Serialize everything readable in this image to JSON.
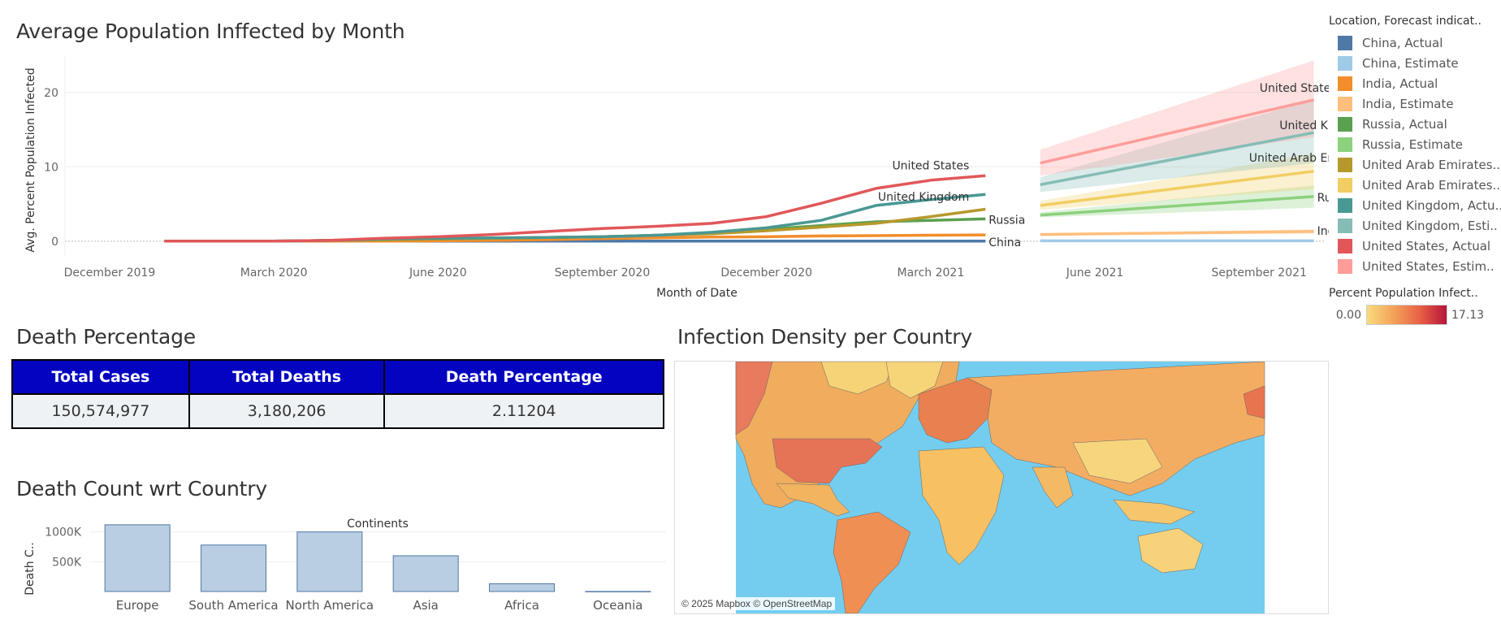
{
  "line_chart": {
    "title": "Average Population Inffected by Month",
    "ylabel": "Avg. Percent Population Infected",
    "xlabel": "Month of Date"
  },
  "legend": {
    "title": "Location, Forecast indicat..",
    "items": [
      {
        "label": "China, Actual",
        "color": "#4e79a7"
      },
      {
        "label": "China, Estimate",
        "color": "#a0cbe8"
      },
      {
        "label": "India, Actual",
        "color": "#f28e2b"
      },
      {
        "label": "India, Estimate",
        "color": "#ffbe7d"
      },
      {
        "label": "Russia, Actual",
        "color": "#59a14f"
      },
      {
        "label": "Russia, Estimate",
        "color": "#8cd17d"
      },
      {
        "label": "United Arab Emirates..",
        "color": "#b6992d"
      },
      {
        "label": "United Arab Emirates..",
        "color": "#f1ce63"
      },
      {
        "label": "United Kingdom, Actu..",
        "color": "#499894"
      },
      {
        "label": "United Kingdom, Esti..",
        "color": "#86bcb6"
      },
      {
        "label": "United States, Actual",
        "color": "#e15759"
      },
      {
        "label": "United States, Estim..",
        "color": "#ff9d9a"
      }
    ],
    "gradient_title": "Percent Population Infect..",
    "gradient_min": "0.00",
    "gradient_max": "17.13",
    "gradient_colors": [
      "#f8dc7e",
      "#f3a25a",
      "#e86044",
      "#b7143c"
    ]
  },
  "death_table": {
    "title": "Death Percentage",
    "headers": [
      "Total Cases",
      "Total Deaths",
      "Death Percentage"
    ],
    "values": [
      "150,574,977",
      "3,180,206",
      "2.11204"
    ]
  },
  "bar_section": {
    "title": "Death Count wrt Country",
    "subtitle": "Continents",
    "ylabel": "Death C.."
  },
  "map_section": {
    "title": "Infection Density per Country",
    "attribution": "© 2025 Mapbox © OpenStreetMap"
  },
  "chart_data": [
    {
      "type": "line",
      "title": "Average Population Inffected by Month",
      "xlabel": "Month of Date",
      "ylabel": "Avg. Percent Population Infected",
      "x_ticks": [
        "December 2019",
        "March 2020",
        "June 2020",
        "September 2020",
        "December 2020",
        "March 2021",
        "June 2021",
        "September 2021"
      ],
      "y_ticks": [
        "0",
        "10",
        "20"
      ],
      "ylim": [
        -1,
        25
      ],
      "actual_months": [
        "2020-01",
        "2020-02",
        "2020-03",
        "2020-04",
        "2020-05",
        "2020-06",
        "2020-07",
        "2020-08",
        "2020-09",
        "2020-10",
        "2020-11",
        "2020-12",
        "2021-01",
        "2021-02",
        "2021-03",
        "2021-04"
      ],
      "estimate_months": [
        "2021-05",
        "2021-10"
      ],
      "series": [
        {
          "name": "China, Actual",
          "color": "#4e79a7",
          "values": [
            0,
            0,
            0,
            0,
            0,
            0,
            0,
            0,
            0,
            0,
            0,
            0,
            0,
            0,
            0,
            0
          ]
        },
        {
          "name": "India, Actual",
          "color": "#f28e2b",
          "values": [
            0,
            0,
            0,
            0,
            0,
            0.05,
            0.1,
            0.2,
            0.35,
            0.45,
            0.55,
            0.6,
            0.7,
            0.75,
            0.8,
            0.85
          ]
        },
        {
          "name": "Russia, Actual",
          "color": "#59a14f",
          "values": [
            0,
            0,
            0,
            0.1,
            0.2,
            0.3,
            0.4,
            0.5,
            0.6,
            0.8,
            1.1,
            1.6,
            2.1,
            2.6,
            2.8,
            3.0
          ]
        },
        {
          "name": "United Arab Emirates, Actual",
          "color": "#b6992d",
          "values": [
            0,
            0,
            0,
            0.1,
            0.2,
            0.3,
            0.4,
            0.5,
            0.6,
            0.8,
            1.0,
            1.4,
            1.9,
            2.4,
            3.3,
            4.3
          ]
        },
        {
          "name": "United Kingdom, Actual",
          "color": "#499894",
          "values": [
            0,
            0,
            0,
            0.1,
            0.3,
            0.4,
            0.45,
            0.5,
            0.6,
            0.8,
            1.2,
            1.8,
            2.8,
            4.8,
            5.6,
            6.3
          ]
        },
        {
          "name": "United States, Actual",
          "color": "#e15759",
          "values": [
            0,
            0,
            0,
            0.1,
            0.4,
            0.6,
            0.9,
            1.3,
            1.7,
            2.0,
            2.4,
            3.3,
            5.1,
            7.1,
            8.2,
            8.8
          ]
        },
        {
          "name": "China, Estimate",
          "color": "#a0cbe8",
          "estimate": true,
          "values": [
            0.05,
            0.05
          ],
          "band": [
            [
              0,
              0.1
            ],
            [
              0,
              0.1
            ]
          ]
        },
        {
          "name": "India, Estimate",
          "color": "#ffbe7d",
          "estimate": true,
          "values": [
            0.9,
            1.3
          ],
          "band": [
            [
              0.8,
              1.0
            ],
            [
              1.0,
              1.6
            ]
          ]
        },
        {
          "name": "Russia, Estimate",
          "color": "#8cd17d",
          "estimate": true,
          "values": [
            3.5,
            6.0
          ],
          "band": [
            [
              3.2,
              3.9
            ],
            [
              4.5,
              7.5
            ]
          ]
        },
        {
          "name": "United Arab Emirates, Estimate",
          "color": "#f1ce63",
          "estimate": true,
          "values": [
            4.8,
            9.4
          ],
          "band": [
            [
              4.2,
              5.4
            ],
            [
              7.0,
              11.8
            ]
          ]
        },
        {
          "name": "United Kingdom, Estimate",
          "color": "#86bcb6",
          "estimate": true,
          "values": [
            7.6,
            14.6
          ],
          "band": [
            [
              6.6,
              8.6
            ],
            [
              10.5,
              19.0
            ]
          ]
        },
        {
          "name": "United States, Estimate",
          "color": "#ff9d9a",
          "estimate": true,
          "values": [
            10.5,
            19.0
          ],
          "band": [
            [
              8.8,
              12.3
            ],
            [
              14.0,
              24.3
            ]
          ]
        }
      ],
      "end_labels": [
        {
          "text": "United States",
          "series": "United States, Actual"
        },
        {
          "text": "United Kingdom",
          "series": "United Kingdom, Actual"
        },
        {
          "text": "Russia",
          "series": "Russia, Actual"
        },
        {
          "text": "China",
          "series": "China, Actual"
        },
        {
          "text": "United States",
          "series": "United States, Estimate"
        },
        {
          "text": "United Kingdom",
          "series": "United Kingdom, Estimate"
        },
        {
          "text": "United Arab Emirates",
          "series": "United Arab Emirates, Estimate"
        },
        {
          "text": "Russia",
          "series": "Russia, Estimate"
        },
        {
          "text": "India",
          "series": "India, Estimate"
        }
      ]
    },
    {
      "type": "bar",
      "title": "Death Count wrt Country",
      "subtitle": "Continents",
      "ylabel": "Death C..",
      "categories": [
        "Europe",
        "South America",
        "North America",
        "Asia",
        "Africa",
        "Oceania"
      ],
      "values": [
        1120000,
        780000,
        1000000,
        600000,
        130000,
        1000
      ],
      "y_ticks": [
        {
          "value": 500000,
          "label": "500K"
        },
        {
          "value": 1000000,
          "label": "1000K"
        }
      ],
      "ylim": [
        0,
        1200000
      ],
      "color": "#b9cde3",
      "stroke": "#4e79a7"
    }
  ]
}
